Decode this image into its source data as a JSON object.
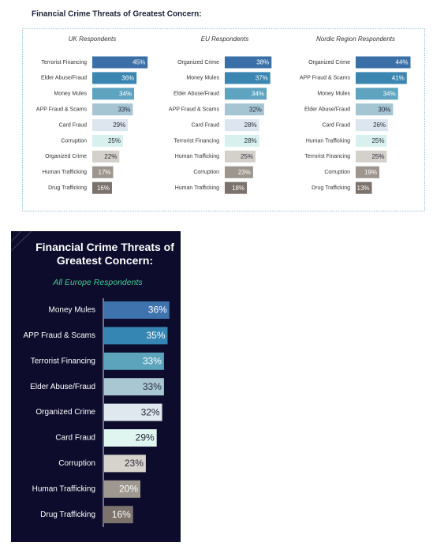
{
  "header": {
    "title": "Financial Crime Threats of Greatest Concern:"
  },
  "chart_data": [
    {
      "type": "hbar",
      "title": "UK Respondents",
      "categories": [
        "Terrorist Financing",
        "Elder Abuse/Fraud",
        "Money Mules",
        "APP Fraud & Scams",
        "Card Fraud",
        "Corruption",
        "Organized Crime",
        "Human Trafficking",
        "Drug Trafficking"
      ],
      "values": [
        45,
        36,
        34,
        33,
        29,
        25,
        22,
        17,
        16
      ],
      "value_labels": [
        "45%",
        "36%",
        "34%",
        "33%",
        "29%",
        "25%",
        "22%",
        "17%",
        "16%"
      ],
      "colors": [
        "#3a6fa8",
        "#3b86b0",
        "#5ea3bf",
        "#a6c5d3",
        "#dde6ee",
        "#d8f1ee",
        "#d4d1ca",
        "#9d968e",
        "#7a726b"
      ]
    },
    {
      "type": "hbar",
      "title": "EU Respondents",
      "categories": [
        "Organized Crime",
        "Money Mules",
        "Elder Abuse/Fraud",
        "APP Fraud & Scams",
        "Card Fraud",
        "Terrorist Financing",
        "Human Trafficking",
        "Corruption",
        "Human Trafficking"
      ],
      "values": [
        38,
        37,
        34,
        32,
        28,
        28,
        25,
        23,
        18
      ],
      "value_labels": [
        "38%",
        "37%",
        "34%",
        "32%",
        "28%",
        "28%",
        "25%",
        "23%",
        "18%"
      ],
      "colors": [
        "#3a6fa8",
        "#3b86b0",
        "#5ea3bf",
        "#a6c5d3",
        "#dde6ee",
        "#d8f1ee",
        "#d4d1ca",
        "#9d968e",
        "#7a726b"
      ]
    },
    {
      "type": "hbar",
      "title": "Nordic Region Respondents",
      "categories": [
        "Organized Crime",
        "APP Fraud & Scams",
        "Money Mules",
        "Elder Abuse/Fraud",
        "Card Fraud",
        "Human Trafficking",
        "Terrorist Financing",
        "Corruption",
        "Drug Trafficking"
      ],
      "values": [
        44,
        41,
        34,
        30,
        26,
        25,
        25,
        19,
        13
      ],
      "value_labels": [
        "44%",
        "41%",
        "34%",
        "30%",
        "26%",
        "25%",
        "25%",
        "19%",
        "13%"
      ],
      "colors": [
        "#3a6fa8",
        "#3b86b0",
        "#5ea3bf",
        "#a6c5d3",
        "#dde6ee",
        "#d8f1ee",
        "#d4d1ca",
        "#9d968e",
        "#7a726b"
      ]
    },
    {
      "type": "hbar",
      "title": "Financial Crime Threats of Greatest Concern:",
      "subtitle": "All Europe Respondents",
      "categories": [
        "Money Mules",
        "APP Fraud & Scams",
        "Terrorist Financing",
        "Elder Abuse/Fraud",
        "Organized Crime",
        "Card Fraud",
        "Corruption",
        "Human Trafficking",
        "Drug Trafficking"
      ],
      "values": [
        36,
        35,
        33,
        33,
        32,
        29,
        23,
        20,
        16
      ],
      "value_labels": [
        "36%",
        "35%",
        "33%",
        "33%",
        "32%",
        "29%",
        "23%",
        "20%",
        "16%"
      ],
      "colors": [
        "#3f73ad",
        "#3686b3",
        "#5ba4bc",
        "#a9c7d3",
        "#dfe7ef",
        "#dff5f0",
        "#d6d3cc",
        "#9e9891",
        "#7b736c"
      ]
    }
  ]
}
